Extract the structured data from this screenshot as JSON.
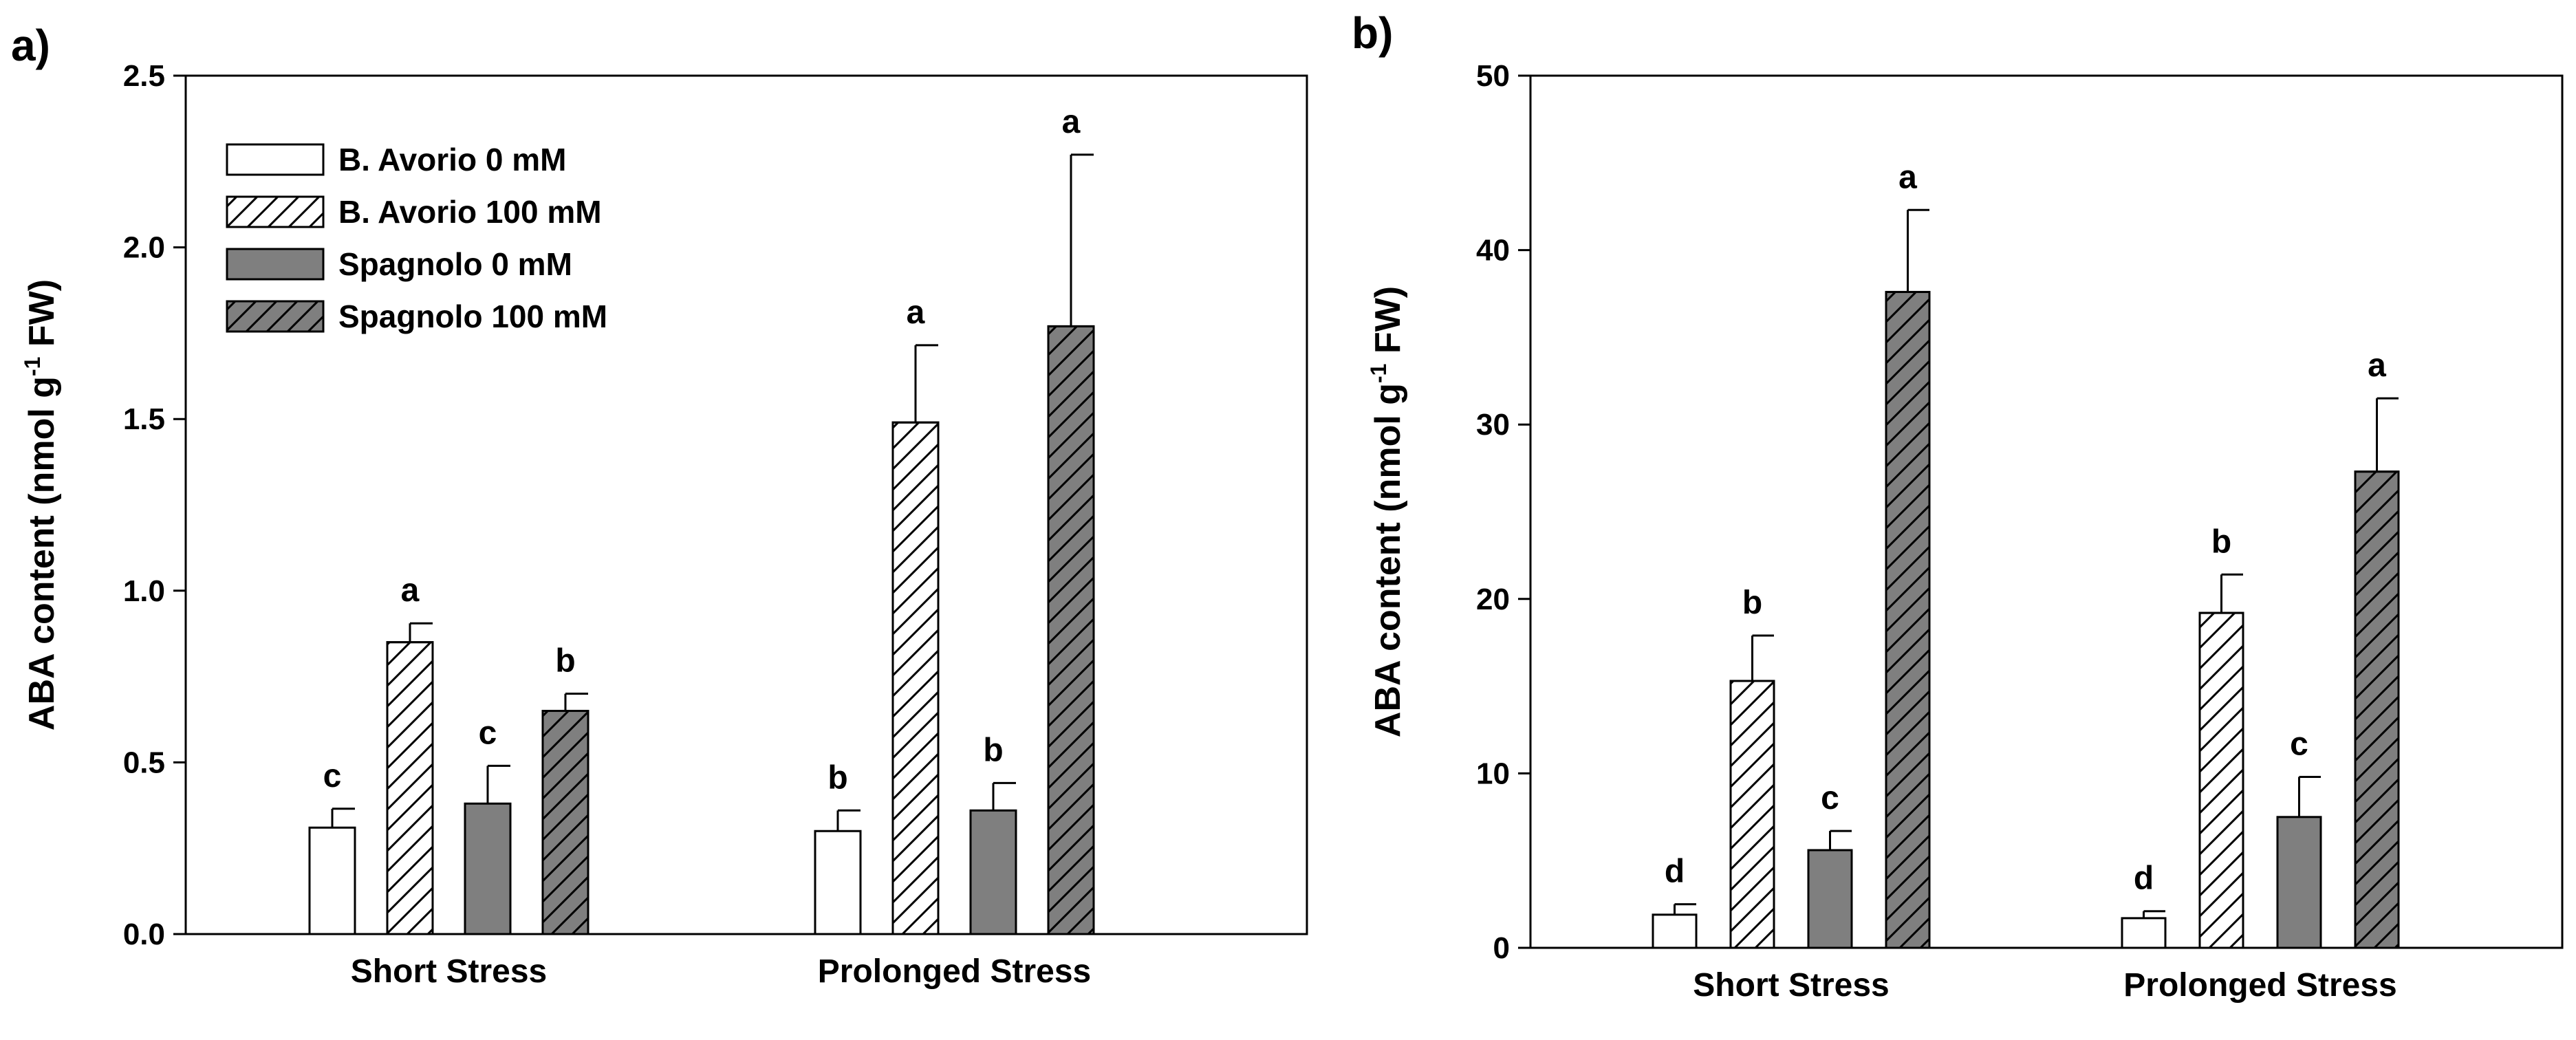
{
  "chart_data": [
    {
      "type": "bar",
      "panel_label": "a)",
      "ylabel": {
        "pre": "ABA content  (nmol g",
        "sup": "-1",
        "post": " FW)"
      },
      "ylim": [
        0,
        2.5
      ],
      "yticks": [
        "0.0",
        "0.5",
        "1.0",
        "1.5",
        "2.0",
        "2.5"
      ],
      "categories": [
        "Short Stress",
        "Prolonged Stress"
      ],
      "series": [
        {
          "name": "B. Avorio 0 mM",
          "values": [
            0.31,
            0.3
          ],
          "errors": [
            0.055,
            0.06
          ],
          "letters": [
            "c",
            "b"
          ],
          "fill": "#ffffff",
          "hatch": false
        },
        {
          "name": "B. Avorio 100 mM",
          "values": [
            0.85,
            1.49
          ],
          "errors": [
            0.055,
            0.225
          ],
          "letters": [
            "a",
            "a"
          ],
          "fill": "#ffffff",
          "hatch": true
        },
        {
          "name": "Spagnolo 0 mM",
          "values": [
            0.38,
            0.36
          ],
          "errors": [
            0.11,
            0.08
          ],
          "letters": [
            "c",
            "b"
          ],
          "fill": "#7f7f7f",
          "hatch": false
        },
        {
          "name": "Spagnolo 100 mM",
          "values": [
            0.65,
            1.77
          ],
          "errors": [
            0.05,
            0.5
          ],
          "letters": [
            "b",
            "a"
          ],
          "fill": "#7f7f7f",
          "hatch": true
        }
      ],
      "legend": {
        "placement": "top-left",
        "show": true
      },
      "grid": false
    },
    {
      "type": "bar",
      "panel_label": "b)",
      "ylabel": {
        "pre": "ABA content (nmol g",
        "sup": "-1",
        "post": " FW)"
      },
      "ylim": [
        0,
        50
      ],
      "yticks": [
        "0",
        "10",
        "20",
        "30",
        "40",
        "50"
      ],
      "categories": [
        "Short Stress",
        "Prolonged Stress"
      ],
      "series": [
        {
          "name": "B. Avorio 0 mM",
          "values": [
            1.9,
            1.7
          ],
          "errors": [
            0.6,
            0.4
          ],
          "letters": [
            "d",
            "d"
          ],
          "fill": "#ffffff",
          "hatch": false
        },
        {
          "name": "B. Avorio 100 mM",
          "values": [
            15.3,
            19.2
          ],
          "errors": [
            2.6,
            2.2
          ],
          "letters": [
            "b",
            "b"
          ],
          "fill": "#ffffff",
          "hatch": true
        },
        {
          "name": "Spagnolo 0 mM",
          "values": [
            5.6,
            7.5
          ],
          "errors": [
            1.1,
            2.3
          ],
          "letters": [
            "c",
            "c"
          ],
          "fill": "#7f7f7f",
          "hatch": false
        },
        {
          "name": "Spagnolo 100 mM",
          "values": [
            37.6,
            27.3
          ],
          "errors": [
            4.7,
            4.2
          ],
          "letters": [
            "a",
            "a"
          ],
          "fill": "#7f7f7f",
          "hatch": true
        }
      ],
      "legend": {
        "show": false
      },
      "grid": false
    }
  ]
}
